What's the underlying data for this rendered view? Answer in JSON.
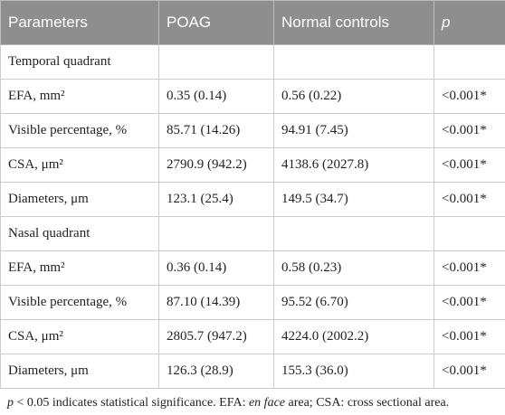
{
  "table": {
    "header": [
      "Parameters",
      "POAG",
      "Normal controls",
      "p"
    ],
    "rows": [
      [
        "Temporal quadrant"
      ],
      [
        "EFA, mm²",
        "0.35 (0.14)",
        "0.56 (0.22)",
        "<0.001*"
      ],
      [
        "Visible percentage, %",
        "85.71 (14.26)",
        "94.91 (7.45)",
        "<0.001*"
      ],
      [
        "CSA, μm²",
        "2790.9 (942.2)",
        "4138.6 (2027.8)",
        "<0.001*"
      ],
      [
        "Diameters, μm",
        "123.1 (25.4)",
        "149.5 (34.7)",
        "<0.001*"
      ],
      [
        "Nasal quadrant"
      ],
      [
        "EFA, mm²",
        "0.36 (0.14)",
        "0.58 (0.23)",
        "<0.001*"
      ],
      [
        "Visible percentage, %",
        "87.10 (14.39)",
        "95.52 (6.70)",
        "<0.001*"
      ],
      [
        "CSA, μm²",
        "2805.7 (947.2)",
        "4224.0 (2002.2)",
        "<0.001*"
      ],
      [
        "Diameters, μm",
        "126.3 (28.9)",
        "155.3 (36.0)",
        "<0.001*"
      ]
    ]
  },
  "footnote": [
    "p",
    " < 0.05 indicates statistical significance. EFA: ",
    "en face",
    " area; CSA: cross sectional area."
  ]
}
